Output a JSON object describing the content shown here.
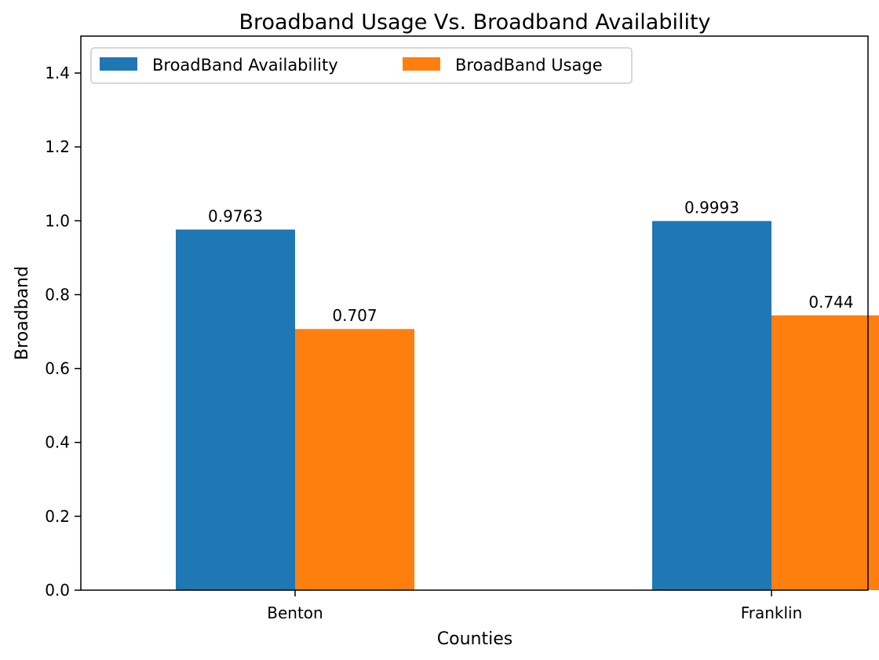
{
  "chart_data": {
    "type": "bar",
    "title": "Broadband Usage Vs. Broadband Availability",
    "xlabel": "Counties",
    "ylabel": "Broadband",
    "categories": [
      "Benton",
      "Franklin"
    ],
    "series": [
      {
        "name": "BroadBand Availability",
        "color": "#1f77b4",
        "values": [
          0.9763,
          0.9993
        ],
        "labels": [
          "0.9763",
          "0.9993"
        ]
      },
      {
        "name": "BroadBand Usage",
        "color": "#ff7f0e",
        "values": [
          0.707,
          0.744
        ],
        "labels": [
          "0.707",
          "0.744"
        ]
      }
    ],
    "ylim": [
      0,
      1.5
    ],
    "yticks": [
      0.0,
      0.2,
      0.4,
      0.6,
      0.8,
      1.0,
      1.2,
      1.4
    ],
    "ytick_labels": [
      "0.0",
      "0.2",
      "0.4",
      "0.6",
      "0.8",
      "1.0",
      "1.2",
      "1.4"
    ],
    "grid": false,
    "legend": "top-left"
  }
}
